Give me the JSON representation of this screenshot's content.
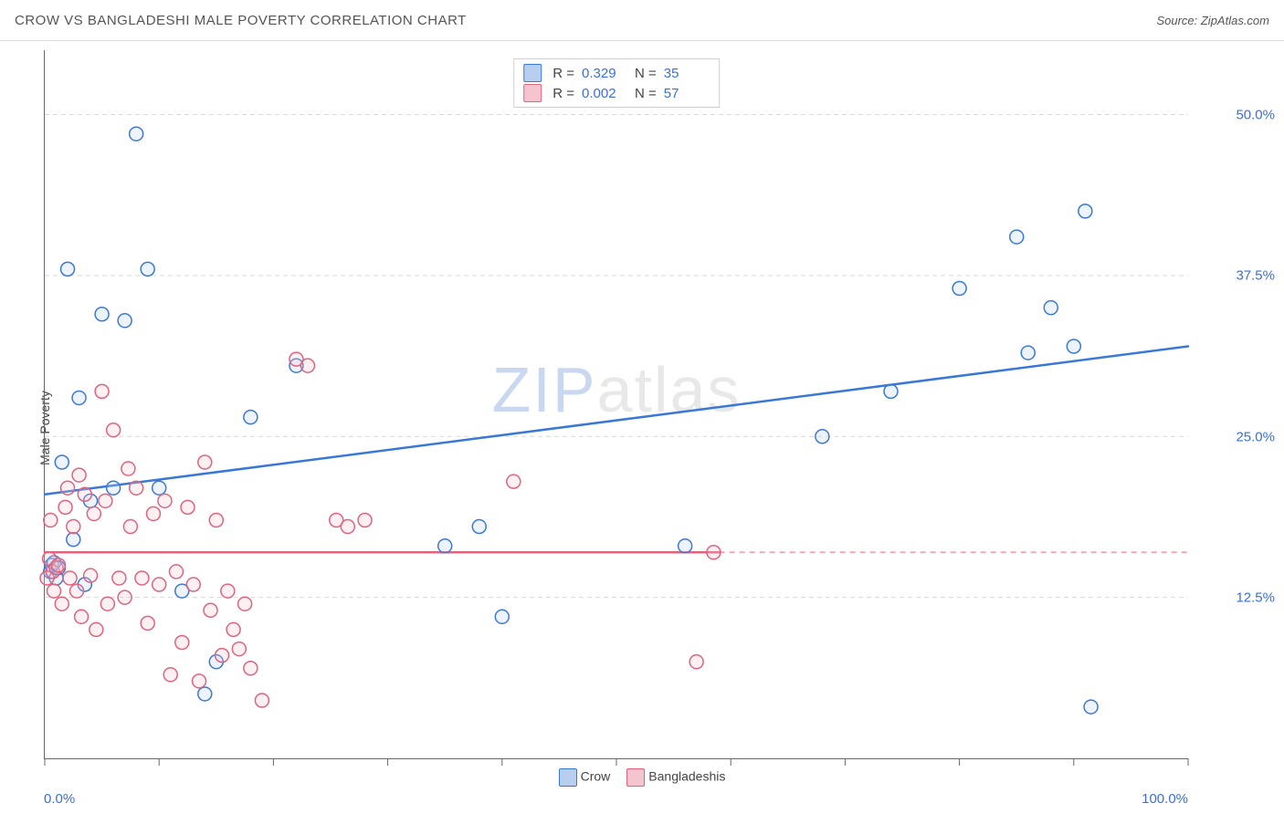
{
  "header": {
    "title": "CROW VS BANGLADESHI MALE POVERTY CORRELATION CHART",
    "source_label": "Source: ",
    "source_name": "ZipAtlas.com"
  },
  "watermark": {
    "part1": "ZIP",
    "part2": "atlas"
  },
  "chart": {
    "type": "scatter",
    "ylabel": "Male Poverty",
    "xlim": [
      0,
      100
    ],
    "ylim": [
      0,
      55
    ],
    "xtick_labels": [
      "0.0%",
      "100.0%"
    ],
    "xtick_minor": [
      10,
      20,
      30,
      40,
      50,
      60,
      70,
      80,
      90
    ],
    "ytick_values": [
      12.5,
      25.0,
      37.5,
      50.0
    ],
    "ytick_labels": [
      "12.5%",
      "25.0%",
      "37.5%",
      "50.0%"
    ],
    "grid_color": "#d9d9d9",
    "grid_dash": "5,4",
    "background_color": "#ffffff",
    "axis_color": "#666666",
    "tick_value_color": "#3a6fd8",
    "label_color": "#444444",
    "marker_radius": 7.5,
    "marker_stroke_width": 1.5,
    "marker_fill_opacity": 0.25,
    "trend_line_width": 2.5,
    "trend_dash_width": 2,
    "trend_dash_pattern": "6,5",
    "series": [
      {
        "name": "Crow",
        "color": "#3a78d8",
        "fill": "#b7ceef",
        "R": "0.329",
        "N": "35",
        "trend": {
          "x0": 0,
          "y0": 20.5,
          "x1": 100,
          "y1": 32.0
        },
        "points": [
          [
            0.5,
            14.5
          ],
          [
            0.6,
            15.0
          ],
          [
            0.8,
            15.2
          ],
          [
            1.0,
            14.0
          ],
          [
            1.2,
            14.8
          ],
          [
            1.5,
            23.0
          ],
          [
            2.0,
            38.0
          ],
          [
            2.5,
            17.0
          ],
          [
            3.0,
            28.0
          ],
          [
            3.5,
            13.5
          ],
          [
            4.0,
            20.0
          ],
          [
            5.0,
            34.5
          ],
          [
            6.0,
            21.0
          ],
          [
            7.0,
            34.0
          ],
          [
            8.0,
            48.5
          ],
          [
            9.0,
            38.0
          ],
          [
            10.0,
            21.0
          ],
          [
            12.0,
            13.0
          ],
          [
            14.0,
            5.0
          ],
          [
            15.0,
            7.5
          ],
          [
            18.0,
            26.5
          ],
          [
            22.0,
            30.5
          ],
          [
            35.0,
            16.5
          ],
          [
            38.0,
            18.0
          ],
          [
            40.0,
            11.0
          ],
          [
            56.0,
            16.5
          ],
          [
            68.0,
            25.0
          ],
          [
            74.0,
            28.5
          ],
          [
            80.0,
            36.5
          ],
          [
            85.0,
            40.5
          ],
          [
            86.0,
            31.5
          ],
          [
            88.0,
            35.0
          ],
          [
            90.0,
            32.0
          ],
          [
            91.0,
            42.5
          ],
          [
            91.5,
            4.0
          ]
        ]
      },
      {
        "name": "Bangladeshis",
        "color": "#e0637e",
        "fill": "#f5c4cf",
        "R": "0.002",
        "N": "57",
        "trend": {
          "x0": 0,
          "y0": 16.0,
          "x1": 100,
          "y1": 16.0
        },
        "trend_solid_to_x": 59,
        "points": [
          [
            0.2,
            14.0
          ],
          [
            0.4,
            15.5
          ],
          [
            0.5,
            18.5
          ],
          [
            0.7,
            14.5
          ],
          [
            0.8,
            13.0
          ],
          [
            1.0,
            14.8
          ],
          [
            1.2,
            15.0
          ],
          [
            1.5,
            12.0
          ],
          [
            1.8,
            19.5
          ],
          [
            2.0,
            21.0
          ],
          [
            2.2,
            14.0
          ],
          [
            2.5,
            18.0
          ],
          [
            2.8,
            13.0
          ],
          [
            3.0,
            22.0
          ],
          [
            3.2,
            11.0
          ],
          [
            3.5,
            20.5
          ],
          [
            4.0,
            14.2
          ],
          [
            4.3,
            19.0
          ],
          [
            4.5,
            10.0
          ],
          [
            5.0,
            28.5
          ],
          [
            5.3,
            20.0
          ],
          [
            5.5,
            12.0
          ],
          [
            6.0,
            25.5
          ],
          [
            6.5,
            14.0
          ],
          [
            7.0,
            12.5
          ],
          [
            7.3,
            22.5
          ],
          [
            7.5,
            18.0
          ],
          [
            8.0,
            21.0
          ],
          [
            8.5,
            14.0
          ],
          [
            9.0,
            10.5
          ],
          [
            9.5,
            19.0
          ],
          [
            10.0,
            13.5
          ],
          [
            10.5,
            20.0
          ],
          [
            11.0,
            6.5
          ],
          [
            11.5,
            14.5
          ],
          [
            12.0,
            9.0
          ],
          [
            12.5,
            19.5
          ],
          [
            13.0,
            13.5
          ],
          [
            13.5,
            6.0
          ],
          [
            14.0,
            23.0
          ],
          [
            14.5,
            11.5
          ],
          [
            15.0,
            18.5
          ],
          [
            15.5,
            8.0
          ],
          [
            16.0,
            13.0
          ],
          [
            16.5,
            10.0
          ],
          [
            17.0,
            8.5
          ],
          [
            17.5,
            12.0
          ],
          [
            18.0,
            7.0
          ],
          [
            19.0,
            4.5
          ],
          [
            22.0,
            31.0
          ],
          [
            23.0,
            30.5
          ],
          [
            25.5,
            18.5
          ],
          [
            26.5,
            18.0
          ],
          [
            28.0,
            18.5
          ],
          [
            41.0,
            21.5
          ],
          [
            57.0,
            7.5
          ],
          [
            58.5,
            16.0
          ]
        ]
      }
    ]
  },
  "bottom_legend": [
    {
      "label": "Crow",
      "swatch_fill": "#b7ceef",
      "swatch_stroke": "#3a78d8"
    },
    {
      "label": "Bangladeshis",
      "swatch_fill": "#f5c4cf",
      "swatch_stroke": "#e0637e"
    }
  ]
}
